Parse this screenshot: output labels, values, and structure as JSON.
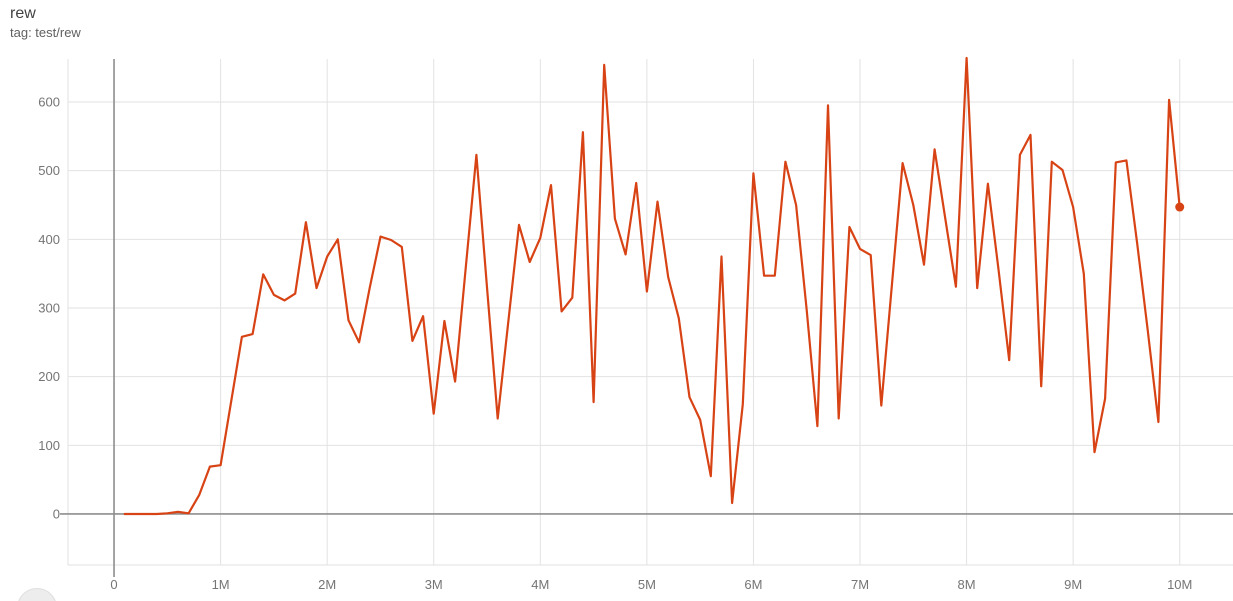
{
  "header": {
    "title": "rew",
    "subtitle": "tag: test/rew"
  },
  "colors": {
    "line": "#d84315",
    "axis": "#8e8e8e",
    "grid": "#e2e2e2",
    "chart_border": "#e2e2e2",
    "tick_text": "#757575",
    "title_text": "#424242",
    "subtitle_text": "#616161",
    "partial_circle_fill": "#ededed",
    "partial_circle_stroke": "#dfdfdf"
  },
  "chart_data": {
    "type": "line",
    "title": "rew",
    "subtitle": "tag: test/rew",
    "xlabel": "",
    "ylabel": "",
    "grid": true,
    "legend_position": "none",
    "xlim_M": [
      -0.432,
      10.5
    ],
    "ylim": [
      -74.3,
      662.6
    ],
    "x_tick_values_M": [
      0,
      1,
      2,
      3,
      4,
      5,
      6,
      7,
      8,
      9,
      10
    ],
    "x_tick_labels": [
      "0",
      "1M",
      "2M",
      "3M",
      "4M",
      "5M",
      "6M",
      "7M",
      "8M",
      "9M",
      "10M"
    ],
    "y_tick_values": [
      0,
      100,
      200,
      300,
      400,
      500,
      600
    ],
    "y_tick_labels": [
      "0",
      "100",
      "200",
      "300",
      "400",
      "500",
      "600"
    ],
    "endpoint_dot": true,
    "series": [
      {
        "name": "test/rew",
        "color": "#d84315",
        "x_steps_M": [
          0.1,
          0.2,
          0.3,
          0.4,
          0.5,
          0.6,
          0.7,
          0.8,
          0.9,
          1.0,
          1.1,
          1.2,
          1.3,
          1.4,
          1.5,
          1.6,
          1.7,
          1.8,
          1.9,
          2.0,
          2.1,
          2.2,
          2.3,
          2.4,
          2.5,
          2.6,
          2.7,
          2.8,
          2.9,
          3.0,
          3.1,
          3.2,
          3.3,
          3.4,
          3.5,
          3.6,
          3.7,
          3.8,
          3.9,
          4.0,
          4.1,
          4.2,
          4.3,
          4.4,
          4.5,
          4.6,
          4.7,
          4.8,
          4.9,
          5.0,
          5.1,
          5.2,
          5.3,
          5.4,
          5.5,
          5.6,
          5.7,
          5.8,
          5.9,
          6.0,
          6.1,
          6.2,
          6.3,
          6.4,
          6.5,
          6.6,
          6.7,
          6.8,
          6.9,
          7.0,
          7.1,
          7.2,
          7.3,
          7.4,
          7.5,
          7.6,
          7.7,
          7.8,
          7.9,
          8.0,
          8.1,
          8.2,
          8.3,
          8.4,
          8.5,
          8.6,
          8.7,
          8.8,
          8.9,
          9.0,
          9.1,
          9.2,
          9.3,
          9.4,
          9.5,
          9.6,
          9.7,
          9.8,
          9.9,
          10.0
        ],
        "values": [
          0,
          0,
          0,
          0,
          1,
          3,
          1,
          28,
          69,
          71,
          165,
          258,
          262,
          349,
          319,
          311,
          321,
          425,
          329,
          375,
          400,
          282,
          250,
          330,
          404,
          399,
          389,
          252,
          288,
          146,
          281,
          193,
          358,
          523,
          330,
          139,
          280,
          421,
          367,
          402,
          479,
          295,
          315,
          556,
          163,
          654,
          430,
          378,
          482,
          324,
          455,
          345,
          285,
          170,
          137,
          55,
          375,
          16,
          160,
          496,
          347,
          347,
          513,
          450,
          297,
          128,
          595,
          139,
          418,
          386,
          377,
          158,
          335,
          511,
          450,
          363,
          531,
          430,
          331,
          664,
          329,
          481,
          355,
          224,
          523,
          552,
          186,
          513,
          501,
          447,
          350,
          90,
          168,
          512,
          515,
          395,
          268,
          134,
          603,
          447
        ]
      }
    ]
  }
}
